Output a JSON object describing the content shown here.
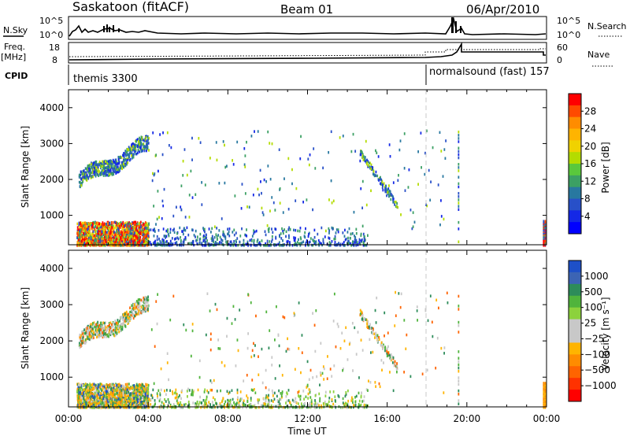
{
  "header": {
    "station": "Saskatoon (fitACF)",
    "beam": "Beam 01",
    "date": "06/Apr/2010"
  },
  "strip": {
    "nsky_label": "N.Sky",
    "nsky_ticks": [
      "10^5",
      "10^0"
    ],
    "nsearch_label": "N.Search",
    "nsearch_ticks": [
      "10^5",
      "10^0"
    ],
    "freq_label": "Freq.",
    "freq_unit": "[MHz]",
    "freq_ticks": [
      "18",
      "8"
    ],
    "nave_label": "Nave",
    "nave_ticks": [
      "60",
      "0"
    ],
    "cpid_label": "CPID",
    "cpid_segments": [
      "themis 3300",
      "normalsound (fast) 157"
    ]
  },
  "axes": {
    "ylabel": "Slant Range [km]",
    "xlabel": "Time UT",
    "y_ticks": [
      "1000",
      "2000",
      "3000",
      "4000"
    ],
    "x_ticks": [
      "00:00",
      "04:00",
      "08:00",
      "12:00",
      "16:00",
      "20:00",
      "00:00"
    ]
  },
  "colorbars": {
    "power": {
      "label": "Power [dB]",
      "ticks": [
        "28",
        "24",
        "20",
        "16",
        "12",
        "8",
        "4"
      ],
      "colors": [
        "#ff0000",
        "#ff4a00",
        "#ff8c00",
        "#ffb400",
        "#f0d200",
        "#b4dc00",
        "#5ac83c",
        "#3ca064",
        "#2878a0",
        "#2850c8",
        "#1428e6",
        "#0000ff"
      ]
    },
    "velocity": {
      "label": "Velocity [m s⁻¹]",
      "ticks": [
        "1000",
        "500",
        "100",
        "25",
        "−25",
        "−100",
        "−500",
        "−1000"
      ],
      "colors": [
        "#1e50c8",
        "#3c64b4",
        "#2d8c5a",
        "#50b43c",
        "#8cd23c",
        "#c8c8c8",
        "#c8c8c8",
        "#ffb400",
        "#ff8c00",
        "#ff6400",
        "#ff3200",
        "#ff0000"
      ]
    }
  },
  "chart_data": [
    {
      "type": "heatmap",
      "panel": "power",
      "ylabel": "Slant Range [km]",
      "xlabel": "Time UT",
      "xlim_hours": [
        0,
        24
      ],
      "ylim_km": [
        180,
        4500
      ],
      "grid": false,
      "cpid_change_hour": 18.0,
      "features": [
        {
          "x": [
            0.5,
            3.8
          ],
          "y": [
            200,
            800
          ],
          "level_db": 24
        },
        {
          "x": [
            0.5,
            4.0
          ],
          "y": [
            2000,
            3300
          ],
          "level_db": 8
        },
        {
          "x": [
            14.7,
            16.2
          ],
          "y": [
            1300,
            2800
          ],
          "level_db": 8
        },
        {
          "x": [
            23.8,
            24.0
          ],
          "y": [
            200,
            900
          ],
          "level_db": 28
        }
      ]
    },
    {
      "type": "heatmap",
      "panel": "velocity",
      "ylabel": "Slant Range [km]",
      "xlabel": "Time UT",
      "xlim_hours": [
        0,
        24
      ],
      "ylim_km": [
        180,
        4500
      ],
      "grid": false,
      "features": [
        {
          "x": [
            0.5,
            4.0
          ],
          "y": [
            200,
            800
          ],
          "level_ms": -100
        },
        {
          "x": [
            0.5,
            4.0
          ],
          "y": [
            2000,
            3300
          ],
          "level_ms": 0
        },
        {
          "x": [
            23.8,
            24.0
          ],
          "y": [
            200,
            900
          ],
          "level_ms": -100
        }
      ]
    }
  ]
}
